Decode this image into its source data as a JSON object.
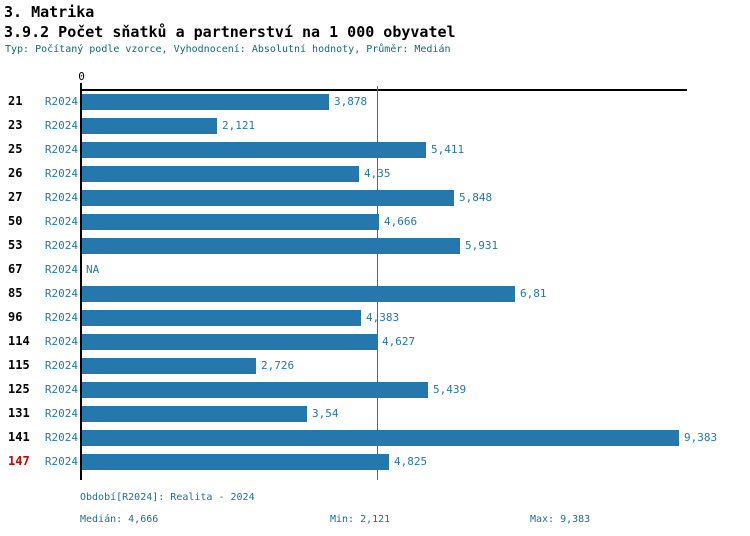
{
  "header": {
    "section_title": "3. Matrika",
    "chart_title": "3.9.2 Počet sňatků a partnerství na 1 000 obyvatel",
    "info_line": "Typ: Počítaný podle vzorce, Vyhodnocení: Absolutní hodnoty, Průměr: Medián"
  },
  "chart_data": {
    "type": "bar",
    "orientation": "horizontal",
    "title": "3.9.2 Počet sňatků a partnerství na 1 000 obyvatel",
    "series_name": "R2024",
    "x_axis": {
      "zero_label": "0",
      "min": 0,
      "max_extent": 9.52,
      "median_reference_line": 4.666,
      "grid": false
    },
    "rows": [
      {
        "category": "21",
        "period": "R2024",
        "value": 3.878,
        "label": "3,878",
        "highlighted": false
      },
      {
        "category": "23",
        "period": "R2024",
        "value": 2.121,
        "label": "2,121",
        "highlighted": false
      },
      {
        "category": "25",
        "period": "R2024",
        "value": 5.411,
        "label": "5,411",
        "highlighted": false
      },
      {
        "category": "26",
        "period": "R2024",
        "value": 4.35,
        "label": "4,35",
        "highlighted": false
      },
      {
        "category": "27",
        "period": "R2024",
        "value": 5.848,
        "label": "5,848",
        "highlighted": false
      },
      {
        "category": "50",
        "period": "R2024",
        "value": 4.666,
        "label": "4,666",
        "highlighted": false
      },
      {
        "category": "53",
        "period": "R2024",
        "value": 5.931,
        "label": "5,931",
        "highlighted": false
      },
      {
        "category": "67",
        "period": "R2024",
        "value": null,
        "label": "NA",
        "highlighted": false
      },
      {
        "category": "85",
        "period": "R2024",
        "value": 6.81,
        "label": "6,81",
        "highlighted": false
      },
      {
        "category": "96",
        "period": "R2024",
        "value": 4.383,
        "label": "4,383",
        "highlighted": false
      },
      {
        "category": "114",
        "period": "R2024",
        "value": 4.627,
        "label": "4,627",
        "highlighted": false
      },
      {
        "category": "115",
        "period": "R2024",
        "value": 2.726,
        "label": "2,726",
        "highlighted": false
      },
      {
        "category": "125",
        "period": "R2024",
        "value": 5.439,
        "label": "5,439",
        "highlighted": false
      },
      {
        "category": "131",
        "period": "R2024",
        "value": 3.54,
        "label": "3,54",
        "highlighted": false
      },
      {
        "category": "141",
        "period": "R2024",
        "value": 9.383,
        "label": "9,383",
        "highlighted": false
      },
      {
        "category": "147",
        "period": "R2024",
        "value": 4.825,
        "label": "4,825",
        "highlighted": true
      }
    ],
    "stats": {
      "median": 4.666,
      "min": 2.121,
      "max": 9.383
    }
  },
  "footer": {
    "period_line": "Období[R2024]: Realita - 2024",
    "median_label": "Medián: 4,666",
    "min_label": "Min: 2,121",
    "max_label": "Max: 9,383"
  },
  "colors": {
    "bar": "#2478ae",
    "value_text": "#2478b4",
    "period_text": "#2478b4",
    "info_text": "#116d75",
    "footer_text": "#1d6f96",
    "highlight_text": "#d40000",
    "axis": "#000000"
  }
}
